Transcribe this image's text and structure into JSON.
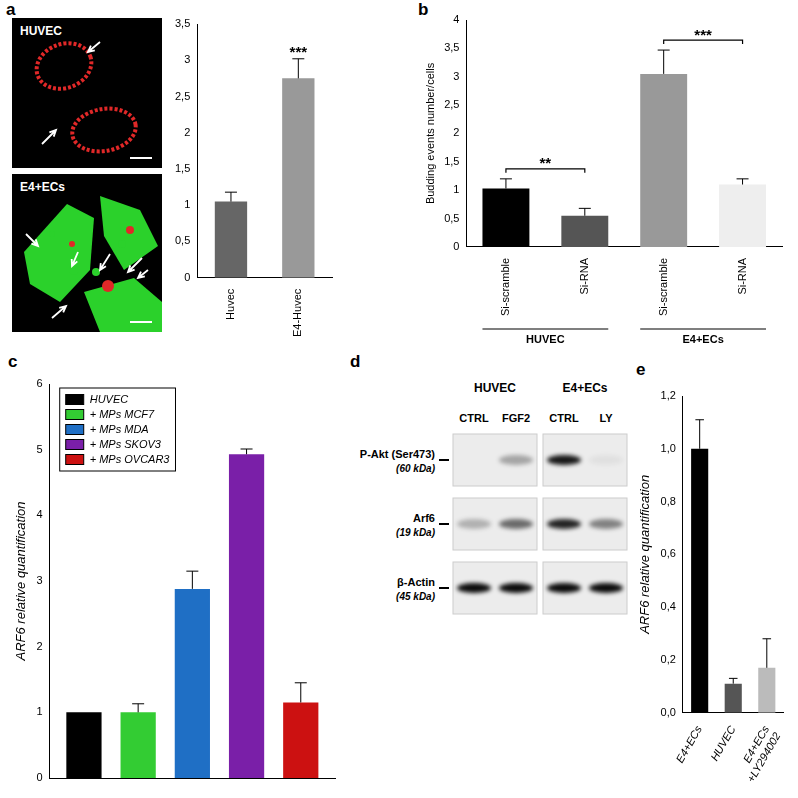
{
  "chart_data": [
    {
      "panel": "a",
      "type": "bar",
      "categories": [
        "Huvec",
        "E4-Huvec"
      ],
      "values": [
        1.05,
        2.75
      ],
      "errors": [
        0.13,
        0.27
      ],
      "colors": [
        "#666666",
        "#999999"
      ],
      "ylim": [
        0,
        3.5
      ],
      "yticks": [
        0,
        {
          "value": 0.5,
          "label": "0,5"
        },
        1,
        {
          "value": 1.5,
          "label": "1,5"
        },
        2,
        {
          "value": 2.5,
          "label": "2,5"
        },
        3,
        {
          "value": 3.5,
          "label": "3,5"
        }
      ],
      "grid": false,
      "annotations": [
        {
          "text": "***",
          "at": 1
        }
      ]
    },
    {
      "panel": "b",
      "type": "bar",
      "y_label": "Budding events number/cells",
      "categories": [
        "Si-scramble",
        "Si-RNA",
        "Si-scramble",
        "Si-RNA"
      ],
      "groups": [
        {
          "label": "HUVEC",
          "from": 0,
          "to": 1
        },
        {
          "label": "E4+ECs",
          "from": 2,
          "to": 3
        }
      ],
      "values": [
        1.03,
        0.55,
        3.05,
        1.1
      ],
      "errors": [
        0.17,
        0.13,
        0.42,
        0.1
      ],
      "colors": [
        "#000000",
        "#555555",
        "#999999",
        "#eeeeee"
      ],
      "ylim": [
        0,
        4
      ],
      "yticks": [
        0,
        {
          "value": 0.5,
          "label": "0,5"
        },
        1,
        {
          "value": 1.5,
          "label": "1,5"
        },
        2,
        {
          "value": 2.5,
          "label": "2,5"
        },
        3,
        {
          "value": 3.5,
          "label": "3,5"
        },
        4
      ],
      "grid": false,
      "annotations": [
        {
          "text": "**",
          "between": [
            0,
            1
          ]
        },
        {
          "text": "***",
          "between": [
            2,
            3
          ]
        }
      ]
    },
    {
      "panel": "c",
      "type": "bar",
      "y_label": "ARF6 relative quantification",
      "categories": [
        null
      ],
      "series": [
        {
          "name": "HUVEC",
          "color": "#000000",
          "values": [
            1
          ],
          "errors": [
            0
          ]
        },
        {
          "name": "+ MPs MCF7",
          "color": "#33cc33",
          "values": [
            1.0
          ],
          "errors": [
            0.13
          ]
        },
        {
          "name": "+ MPs MDA",
          "color": "#1f6fc5",
          "values": [
            2.88
          ],
          "errors": [
            0.27
          ]
        },
        {
          "name": "+ MPs SKOV3",
          "color": "#7a1fa8",
          "values": [
            4.93
          ],
          "errors": [
            0.08
          ]
        },
        {
          "name": "+ MPs OVCAR3",
          "color": "#cc1111",
          "values": [
            1.15
          ],
          "errors": [
            0.3
          ]
        }
      ],
      "ylim": [
        0,
        6
      ],
      "yticks": [
        0,
        1,
        2,
        3,
        4,
        5,
        6
      ],
      "grid": false,
      "legend": "top-left",
      "tick_labels": "y"
    },
    {
      "panel": "e",
      "type": "bar",
      "y_label": "ARF6 relative quantification",
      "categories": [
        "E4+ECs",
        "HUVEC",
        "E4+ECs +LY294002"
      ],
      "values": [
        1.0,
        0.11,
        0.17
      ],
      "errors": [
        0.11,
        0.02,
        0.11
      ],
      "colors": [
        "#000000",
        "#555555",
        "#bbbbbb"
      ],
      "ylim": [
        0,
        1.2
      ],
      "yticks": [
        {
          "value": 0,
          "label": "0,0"
        },
        {
          "value": 0.2,
          "label": "0,2"
        },
        {
          "value": 0.4,
          "label": "0,4"
        },
        {
          "value": 0.6,
          "label": "0,6"
        },
        {
          "value": 0.8,
          "label": "0,8"
        },
        {
          "value": 1.0,
          "label": "1,0"
        },
        {
          "value": 1.2,
          "label": "1,2"
        }
      ],
      "grid": false
    }
  ],
  "images": [
    {
      "label": "HUVEC"
    },
    {
      "label": "E4+ECs"
    }
  ],
  "blot": {
    "panel": "d",
    "groups": [
      {
        "label": "HUVEC",
        "lanes": [
          "CTRL",
          "FGF2"
        ]
      },
      {
        "label": "E4+ECs",
        "lanes": [
          "CTRL",
          "LY"
        ]
      }
    ],
    "rows": [
      {
        "label": "P-Akt (Ser473)",
        "size": "(60 kDa)",
        "bands": [
          0.0,
          0.3,
          0.9,
          0.05
        ]
      },
      {
        "label": "Arf6",
        "size": "(19 kDa)",
        "bands": [
          0.25,
          0.55,
          0.85,
          0.45
        ]
      },
      {
        "label": "β-Actin",
        "size": "(45 kDa)",
        "bands": [
          0.95,
          0.95,
          0.95,
          0.95
        ]
      }
    ]
  }
}
